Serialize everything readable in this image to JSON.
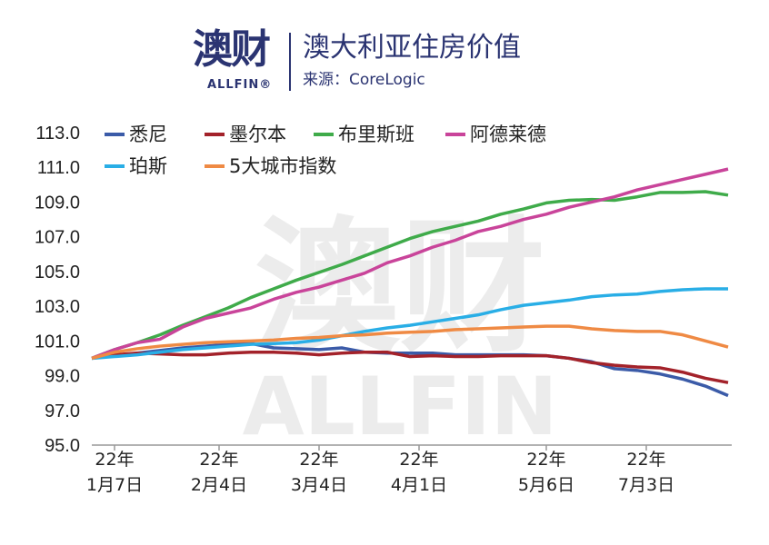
{
  "header": {
    "logo_cn": "澳财",
    "logo_en": "ALLFIN®",
    "title": "澳大利亚住房价值",
    "source": "来源：CoreLogic"
  },
  "watermark": {
    "cn": "澳财",
    "en": "ALLFIN"
  },
  "chart_data": {
    "type": "line",
    "title": "澳大利亚住房价值",
    "ylim": [
      95,
      113
    ],
    "yticks": [
      "113.0",
      "111.0",
      "109.0",
      "107.0",
      "105.0",
      "103.0",
      "101.0",
      "99.0",
      "97.0",
      "95.0"
    ],
    "xticks": [
      {
        "pos": 1,
        "year": "22年",
        "date": "1月7日"
      },
      {
        "pos": 5.6,
        "year": "22年",
        "date": "2月4日"
      },
      {
        "pos": 10,
        "year": "22年",
        "date": "3月4日"
      },
      {
        "pos": 14.4,
        "year": "22年",
        "date": "4月1日"
      },
      {
        "pos": 20,
        "year": "22年",
        "date": "5月6日"
      },
      {
        "pos": 24.4,
        "year": "22年",
        "date": "7月3日"
      }
    ],
    "grid": false,
    "legend": "top",
    "series": [
      {
        "name": "悉尼",
        "color": "#3b5ba8",
        "values": [
          100.0,
          100.15,
          100.3,
          100.45,
          100.6,
          100.7,
          100.8,
          100.85,
          100.6,
          100.55,
          100.5,
          100.6,
          100.35,
          100.3,
          100.3,
          100.3,
          100.2,
          100.2,
          100.2,
          100.2,
          100.15,
          100.0,
          99.8,
          99.4,
          99.3,
          99.1,
          98.8,
          98.4,
          97.85
        ]
      },
      {
        "name": "墨尔本",
        "color": "#a3222a",
        "values": [
          100.0,
          100.2,
          100.3,
          100.25,
          100.2,
          100.2,
          100.3,
          100.35,
          100.35,
          100.3,
          100.2,
          100.3,
          100.35,
          100.35,
          100.1,
          100.15,
          100.1,
          100.1,
          100.15,
          100.15,
          100.15,
          100.0,
          99.75,
          99.6,
          99.5,
          99.45,
          99.2,
          98.85,
          98.6
        ]
      },
      {
        "name": "布里斯班",
        "color": "#3fab4a",
        "values": [
          100.0,
          100.5,
          100.9,
          101.35,
          101.9,
          102.4,
          102.9,
          103.5,
          104.0,
          104.5,
          104.95,
          105.4,
          105.9,
          106.4,
          106.9,
          107.3,
          107.6,
          107.9,
          108.3,
          108.6,
          108.95,
          109.1,
          109.15,
          109.1,
          109.3,
          109.55,
          109.55,
          109.6,
          109.4
        ]
      },
      {
        "name": "阿德莱德",
        "color": "#c9449a",
        "values": [
          100.0,
          100.5,
          100.9,
          101.1,
          101.8,
          102.3,
          102.6,
          102.9,
          103.4,
          103.8,
          104.1,
          104.5,
          104.9,
          105.5,
          105.9,
          106.4,
          106.8,
          107.3,
          107.6,
          108.0,
          108.3,
          108.7,
          109.0,
          109.3,
          109.7,
          110.0,
          110.3,
          110.6,
          110.9
        ]
      },
      {
        "name": "珀斯",
        "color": "#29aee6",
        "values": [
          100.0,
          100.1,
          100.2,
          100.35,
          100.5,
          100.6,
          100.7,
          100.8,
          100.85,
          100.9,
          101.05,
          101.3,
          101.55,
          101.75,
          101.9,
          102.1,
          102.3,
          102.5,
          102.8,
          103.05,
          103.2,
          103.35,
          103.55,
          103.65,
          103.7,
          103.85,
          103.95,
          104.0,
          104.0
        ]
      },
      {
        "name": "5大城市指数",
        "color": "#ef8a44",
        "values": [
          100.0,
          100.35,
          100.55,
          100.7,
          100.8,
          100.9,
          100.95,
          101.0,
          101.05,
          101.15,
          101.2,
          101.3,
          101.35,
          101.45,
          101.5,
          101.55,
          101.65,
          101.7,
          101.75,
          101.8,
          101.85,
          101.85,
          101.7,
          101.6,
          101.55,
          101.55,
          101.35,
          101.0,
          100.65
        ]
      }
    ]
  }
}
